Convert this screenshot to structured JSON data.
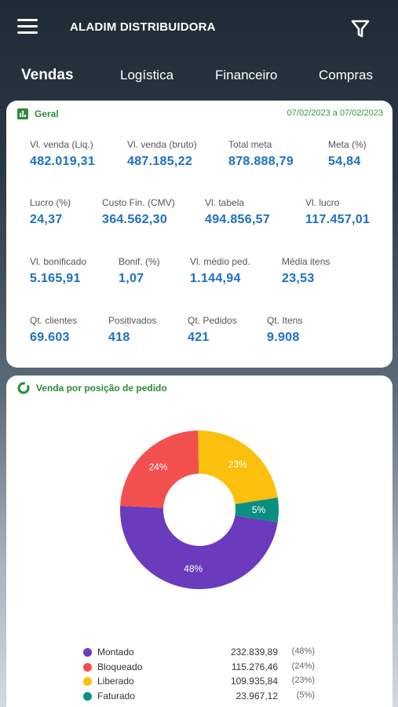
{
  "header": {
    "title": "ALADIM DISTRIBUIDORA"
  },
  "tabs": [
    {
      "label": "Vendas"
    },
    {
      "label": "Logística"
    },
    {
      "label": "Financeiro"
    },
    {
      "label": "Compras"
    }
  ],
  "geral": {
    "title": "Geral",
    "date_range": "07/02/2023 a 07/02/2023",
    "metrics": [
      {
        "label": "Vl. venda (Liq.)",
        "value": "482.019,31"
      },
      {
        "label": "Vl. venda (bruto)",
        "value": "487.185,22"
      },
      {
        "label": "Total meta",
        "value": "878.888,79"
      },
      {
        "label": "Meta (%)",
        "value": "54,84"
      },
      {
        "label": "Lucro (%)",
        "value": "24,37"
      },
      {
        "label": "Custo Fin. (CMV)",
        "value": "364.562,30"
      },
      {
        "label": "Vl. tabela",
        "value": "494.856,57"
      },
      {
        "label": "Vl. lucro",
        "value": "117.457,01"
      },
      {
        "label": "Vl. bonificado",
        "value": "5.165,91"
      },
      {
        "label": "Bonif. (%)",
        "value": "1,07"
      },
      {
        "label": "Vl. médio ped.",
        "value": "1.144,94"
      },
      {
        "label": "Média itens",
        "value": "23,53"
      },
      {
        "label": "Qt. clientes",
        "value": "69.603"
      },
      {
        "label": "Positivados",
        "value": "418"
      },
      {
        "label": "Qt. Pedidos",
        "value": "421"
      },
      {
        "label": "Qt. Itens",
        "value": "9.908"
      }
    ]
  },
  "pie_card": {
    "title": "Venda por posição de pedido"
  },
  "chart_data": {
    "type": "pie",
    "donut": true,
    "title": "Venda por posição de pedido",
    "series": [
      {
        "name": "Montado",
        "value": 232839.89,
        "value_label": "232.839,89",
        "percent": 48,
        "percent_label": "(48%)",
        "slice_label": "48%",
        "color": "#6a3bbd"
      },
      {
        "name": "Bloqueado",
        "value": 115276.46,
        "value_label": "115.276,46",
        "percent": 24,
        "percent_label": "(24%)",
        "slice_label": "24%",
        "color": "#f2504f"
      },
      {
        "name": "Liberado",
        "value": 109935.84,
        "value_label": "109.935,84",
        "percent": 23,
        "percent_label": "(23%)",
        "slice_label": "23%",
        "color": "#fbbf0e"
      },
      {
        "name": "Faturado",
        "value": 23967.12,
        "value_label": "23.967,12",
        "percent": 5,
        "percent_label": "(5%)",
        "slice_label": "5%",
        "color": "#0a8f80"
      }
    ]
  },
  "colors": {
    "accent_green": "#2e8b3a",
    "value_blue": "#1d6fc4"
  }
}
